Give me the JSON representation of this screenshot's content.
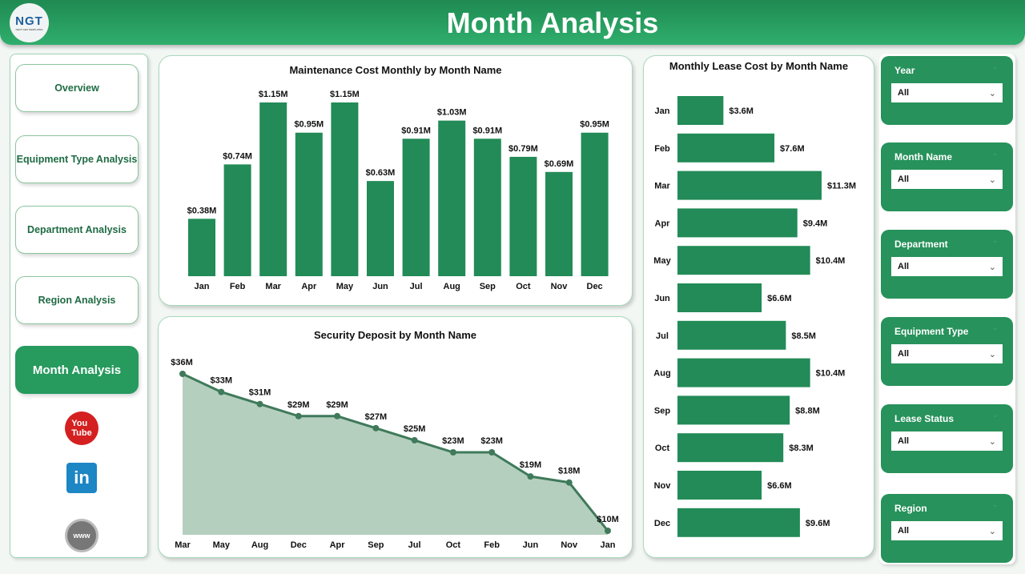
{
  "header": {
    "title": "Month Analysis",
    "logo_text": "NGT",
    "logo_sub": "NEXT GEN TEMPLATES"
  },
  "nav": {
    "items": [
      "Overview",
      "Equipment Type Analysis",
      "Department Analysis",
      "Region Analysis",
      "Month Analysis"
    ],
    "active": "Month Analysis",
    "social": [
      "youtube-icon",
      "linkedin-icon",
      "website-icon"
    ]
  },
  "colors": {
    "bar": "#228b57",
    "area": "#b5cfbf",
    "line": "#3f7a5a",
    "header": "#27995e"
  },
  "chart_data": [
    {
      "type": "bar",
      "title": "Maintenance Cost Monthly by Month Name",
      "categories": [
        "Jan",
        "Feb",
        "Mar",
        "Apr",
        "May",
        "Jun",
        "Jul",
        "Aug",
        "Sep",
        "Oct",
        "Nov",
        "Dec"
      ],
      "values": [
        0.38,
        0.74,
        1.15,
        0.95,
        1.15,
        0.63,
        0.91,
        1.03,
        0.91,
        0.79,
        0.69,
        0.95
      ],
      "labels": [
        "$0.38M",
        "$0.74M",
        "$1.15M",
        "$0.95M",
        "$1.15M",
        "$0.63M",
        "$0.91M",
        "$1.03M",
        "$0.91M",
        "$0.79M",
        "$0.69M",
        "$0.95M"
      ],
      "unit": "$M",
      "ylim": [
        0,
        1.15
      ]
    },
    {
      "type": "area",
      "title": "Security Deposit by Month Name",
      "categories": [
        "Mar",
        "May",
        "Aug",
        "Dec",
        "Apr",
        "Sep",
        "Jul",
        "Oct",
        "Feb",
        "Jun",
        "Nov",
        "Jan"
      ],
      "values": [
        36,
        33,
        31,
        29,
        29,
        27,
        25,
        23,
        23,
        19,
        18,
        10
      ],
      "labels": [
        "$36M",
        "$33M",
        "$31M",
        "$29M",
        "$29M",
        "$27M",
        "$25M",
        "$23M",
        "$23M",
        "$19M",
        "$18M",
        "$10M"
      ],
      "unit": "$M"
    },
    {
      "type": "bar",
      "orientation": "horizontal",
      "title": "Monthly Lease Cost by Month Name",
      "categories": [
        "Jan",
        "Feb",
        "Mar",
        "Apr",
        "May",
        "Jun",
        "Jul",
        "Aug",
        "Sep",
        "Oct",
        "Nov",
        "Dec"
      ],
      "values": [
        3.6,
        7.6,
        11.3,
        9.4,
        10.4,
        6.6,
        8.5,
        10.4,
        8.8,
        8.3,
        6.6,
        9.6
      ],
      "labels": [
        "$3.6M",
        "$7.6M",
        "$11.3M",
        "$9.4M",
        "$10.4M",
        "$6.6M",
        "$8.5M",
        "$10.4M",
        "$8.8M",
        "$8.3M",
        "$6.6M",
        "$9.6M"
      ],
      "unit": "$M"
    }
  ],
  "slicers": [
    {
      "label": "Year",
      "value": "All"
    },
    {
      "label": "Month Name",
      "value": "All"
    },
    {
      "label": "Department",
      "value": "All"
    },
    {
      "label": "Equipment Type",
      "value": "All"
    },
    {
      "label": "Lease Status",
      "value": "All"
    },
    {
      "label": "Region",
      "value": "All"
    }
  ]
}
